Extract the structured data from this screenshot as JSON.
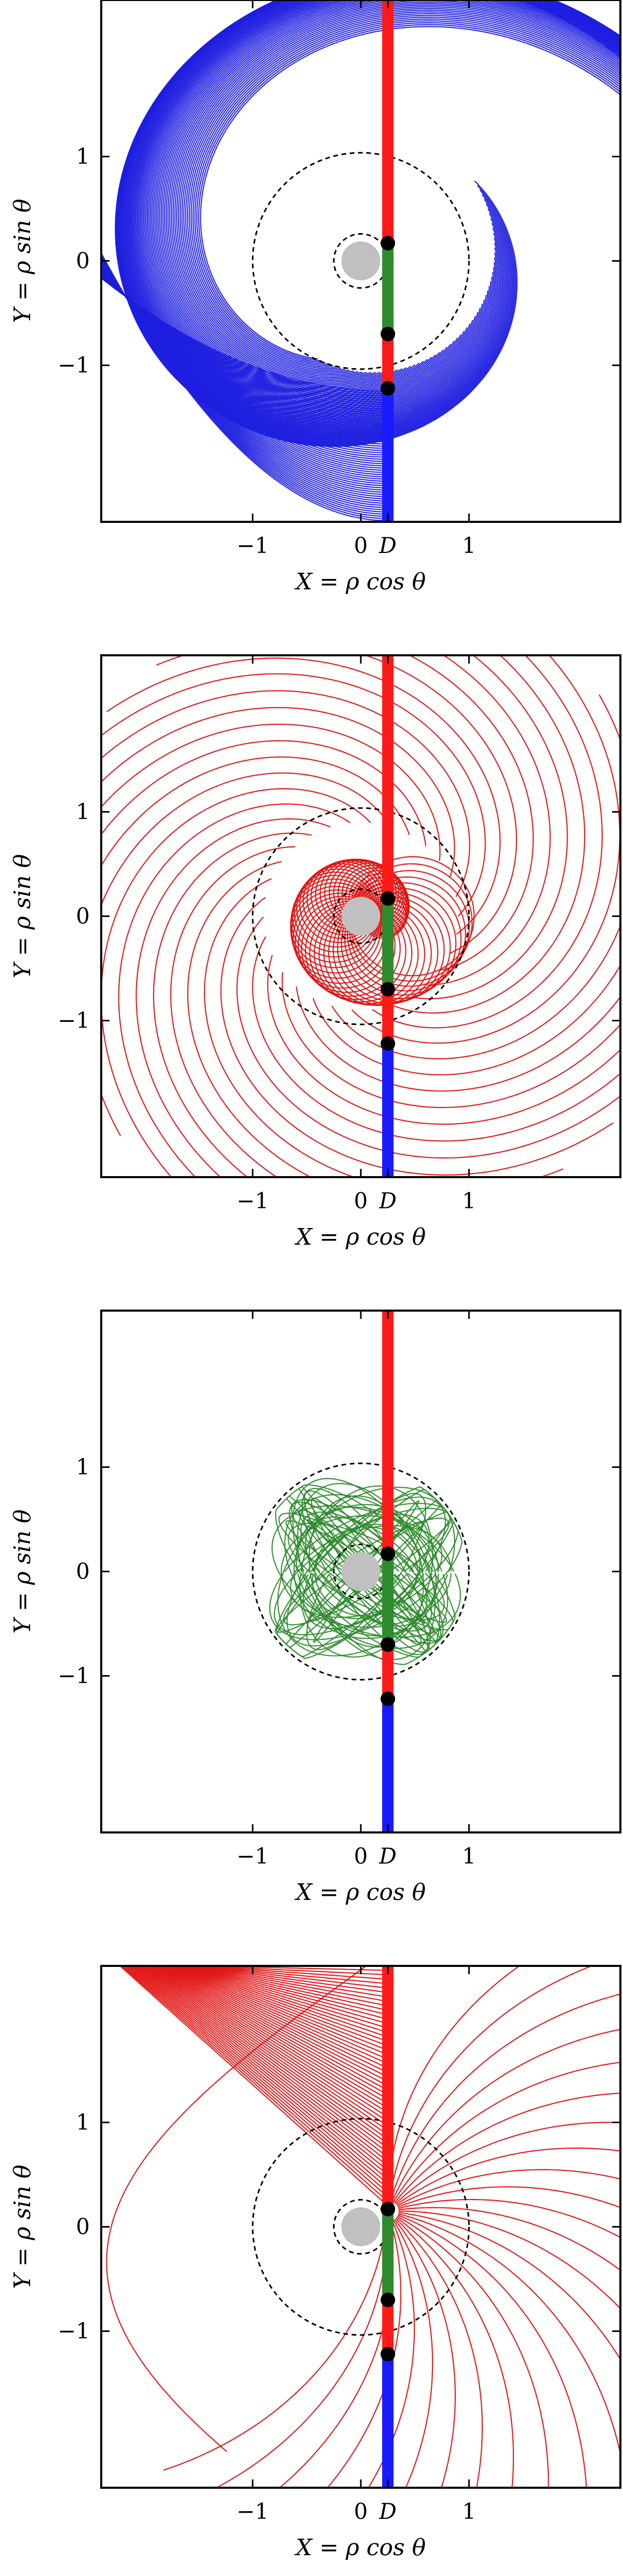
{
  "figure": {
    "colors": {
      "panel1_curves": "#1f1fe0",
      "panel2_curves": "#e01010",
      "panel3_curves": "#2e8b2e",
      "panel4_curves": "#e01010",
      "line_red": "#ff1a1a",
      "line_green": "#2e8b2e",
      "line_blue": "#1a1aff",
      "core_disk": "#c0c0c0",
      "points": "#000000"
    }
  },
  "chart_data": [
    {
      "type": "line",
      "panel": 1,
      "xlabel": "X = ρ cos θ",
      "ylabel": "Y = ρ sin θ",
      "xlim": [
        -2.4,
        2.4
      ],
      "ylim": [
        -2.5,
        2.5
      ],
      "xticks": [
        {
          "value": -1,
          "label": "−1"
        },
        {
          "value": 0,
          "label": "0"
        },
        {
          "value": 0.25,
          "label": "D"
        },
        {
          "value": 1,
          "label": "1"
        }
      ],
      "yticks": [
        {
          "value": 1,
          "label": "1"
        },
        {
          "value": 0,
          "label": "0"
        },
        {
          "value": -1,
          "label": "−1"
        }
      ],
      "D": 0.25,
      "dashed_circles_radius": [
        0.25,
        1.0
      ],
      "core_radius": 0.18,
      "points_y": [
        0.17,
        -0.7,
        -1.22
      ],
      "vertical_segments": [
        {
          "color": "red",
          "y_from": 0.17,
          "y_to": 2.5
        },
        {
          "color": "green",
          "y_from": -0.7,
          "y_to": 0.17
        },
        {
          "color": "red",
          "y_from": -1.22,
          "y_to": -0.7
        },
        {
          "color": "blue",
          "y_from": -2.5,
          "y_to": -1.22
        }
      ],
      "curve_family": "spiral-out",
      "curve_color": "blue"
    },
    {
      "type": "line",
      "panel": 2,
      "xlabel": "X = ρ cos θ",
      "ylabel": "Y = ρ sin θ",
      "xlim": [
        -2.4,
        2.4
      ],
      "ylim": [
        -2.5,
        2.5
      ],
      "xticks": [
        {
          "value": -1,
          "label": "−1"
        },
        {
          "value": 0,
          "label": "0"
        },
        {
          "value": 0.25,
          "label": "D"
        },
        {
          "value": 1,
          "label": "1"
        }
      ],
      "yticks": [
        {
          "value": 1,
          "label": "1"
        },
        {
          "value": 0,
          "label": "0"
        },
        {
          "value": -1,
          "label": "−1"
        }
      ],
      "D": 0.25,
      "dashed_circles_radius": [
        0.25,
        1.0
      ],
      "core_radius": 0.18,
      "points_y": [
        0.17,
        -0.7,
        -1.22
      ],
      "vertical_segments": [
        {
          "color": "red",
          "y_from": 0.17,
          "y_to": 2.5
        },
        {
          "color": "green",
          "y_from": -0.7,
          "y_to": 0.17
        },
        {
          "color": "red",
          "y_from": -1.22,
          "y_to": -0.7
        },
        {
          "color": "blue",
          "y_from": -2.5,
          "y_to": -1.22
        }
      ],
      "curve_family": "loops",
      "curve_color": "red"
    },
    {
      "type": "line",
      "panel": 3,
      "xlabel": "X = ρ cos θ",
      "ylabel": "Y = ρ sin θ",
      "xlim": [
        -2.4,
        2.4
      ],
      "ylim": [
        -2.5,
        2.5
      ],
      "xticks": [
        {
          "value": -1,
          "label": "−1"
        },
        {
          "value": 0,
          "label": "0"
        },
        {
          "value": 0.25,
          "label": "D"
        },
        {
          "value": 1,
          "label": "1"
        }
      ],
      "yticks": [
        {
          "value": 1,
          "label": "1"
        },
        {
          "value": 0,
          "label": "0"
        },
        {
          "value": -1,
          "label": "−1"
        }
      ],
      "D": 0.25,
      "dashed_circles_radius": [
        0.25,
        1.0
      ],
      "core_radius": 0.18,
      "points_y": [
        0.17,
        -0.7,
        -1.22
      ],
      "vertical_segments": [
        {
          "color": "red",
          "y_from": 0.17,
          "y_to": 2.5
        },
        {
          "color": "green",
          "y_from": -0.7,
          "y_to": 0.17
        },
        {
          "color": "red",
          "y_from": -1.22,
          "y_to": -0.7
        },
        {
          "color": "blue",
          "y_from": -2.5,
          "y_to": -1.22
        }
      ],
      "curve_family": "bound",
      "curve_color": "green"
    },
    {
      "type": "line",
      "panel": 4,
      "xlabel": "X = ρ cos θ",
      "ylabel": "Y = ρ sin θ",
      "xlim": [
        -2.4,
        2.4
      ],
      "ylim": [
        -2.5,
        2.5
      ],
      "xticks": [
        {
          "value": -1,
          "label": "−1"
        },
        {
          "value": 0,
          "label": "0"
        },
        {
          "value": 0.25,
          "label": "D"
        },
        {
          "value": 1,
          "label": "1"
        }
      ],
      "yticks": [
        {
          "value": 1,
          "label": "1"
        },
        {
          "value": 0,
          "label": "0"
        },
        {
          "value": -1,
          "label": "−1"
        }
      ],
      "D": 0.25,
      "dashed_circles_radius": [
        0.25,
        1.0
      ],
      "core_radius": 0.18,
      "points_y": [
        0.17,
        -0.7,
        -1.22
      ],
      "vertical_segments": [
        {
          "color": "red",
          "y_from": 0.17,
          "y_to": 2.5
        },
        {
          "color": "green",
          "y_from": -0.7,
          "y_to": 0.17
        },
        {
          "color": "red",
          "y_from": -1.22,
          "y_to": -0.7
        },
        {
          "color": "blue",
          "y_from": -2.5,
          "y_to": -1.22
        }
      ],
      "curve_family": "escape-upper-left",
      "curve_color": "red"
    }
  ]
}
